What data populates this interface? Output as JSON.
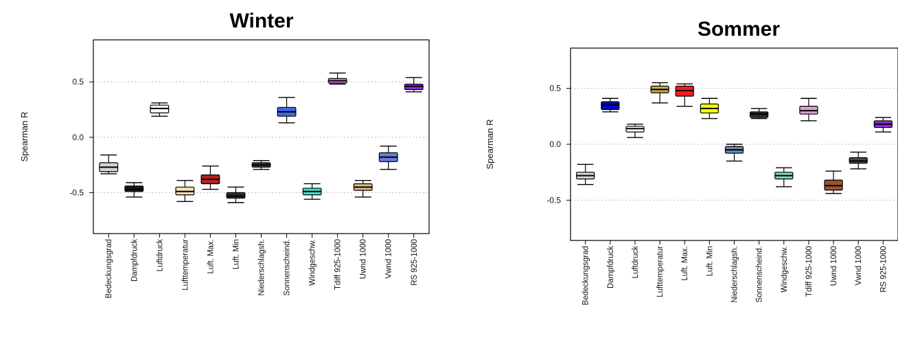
{
  "chart_data": [
    {
      "type": "box",
      "title": "Winter",
      "ylabel": "Spearman R",
      "yticks": [
        "0.5",
        "0.0",
        "-0.5"
      ],
      "ytick_values": [
        0.5,
        0.0,
        -0.5
      ],
      "ylim": [
        -0.87,
        0.88
      ],
      "grid": "horizontal dotted",
      "categories": [
        "Bedeckungsgrad",
        "Dampfdruck",
        "Luftdruck",
        "Lufttemperatur",
        "Luft. Max.",
        "Luft. Min",
        "Niederschlagsh.",
        "Sonnenscheind.",
        "Windgeschw.",
        "Tdiff 925-1000",
        "Uwnd 1000",
        "Vwnd 1000",
        "RS 925-1000"
      ],
      "boxes": [
        {
          "min": -0.33,
          "q1": -0.31,
          "median": -0.27,
          "q3": -0.23,
          "max": -0.16,
          "color": "#d3d3d3"
        },
        {
          "min": -0.54,
          "q1": -0.49,
          "median": -0.47,
          "q3": -0.44,
          "max": -0.41,
          "color": "#1a1a1a"
        },
        {
          "min": 0.19,
          "q1": 0.22,
          "median": 0.26,
          "q3": 0.29,
          "max": 0.31,
          "color": "#fffff0"
        },
        {
          "min": -0.58,
          "q1": -0.52,
          "median": -0.49,
          "q3": -0.45,
          "max": -0.39,
          "color": "#f5deb3"
        },
        {
          "min": -0.47,
          "q1": -0.42,
          "median": -0.38,
          "q3": -0.34,
          "max": -0.26,
          "color": "#b22222"
        },
        {
          "min": -0.59,
          "q1": -0.55,
          "median": -0.53,
          "q3": -0.5,
          "max": -0.45,
          "color": "#2f2f2f"
        },
        {
          "min": -0.29,
          "q1": -0.27,
          "median": -0.25,
          "q3": -0.23,
          "max": -0.21,
          "color": "#3a3a3a"
        },
        {
          "min": 0.13,
          "q1": 0.19,
          "median": 0.23,
          "q3": 0.27,
          "max": 0.36,
          "color": "#4169e1"
        },
        {
          "min": -0.56,
          "q1": -0.52,
          "median": -0.49,
          "q3": -0.46,
          "max": -0.42,
          "color": "#40e0d0"
        },
        {
          "min": 0.48,
          "q1": 0.49,
          "median": 0.51,
          "q3": 0.53,
          "max": 0.58,
          "color": "#ee82ee"
        },
        {
          "min": -0.54,
          "q1": -0.48,
          "median": -0.45,
          "q3": -0.42,
          "max": -0.39,
          "color": "#deb887"
        },
        {
          "min": -0.29,
          "q1": -0.22,
          "median": -0.18,
          "q3": -0.14,
          "max": -0.08,
          "color": "#6a7bdc"
        },
        {
          "min": 0.41,
          "q1": 0.43,
          "median": 0.46,
          "q3": 0.48,
          "max": 0.54,
          "color": "#8a2be2"
        }
      ]
    },
    {
      "type": "box",
      "title": "Sommer",
      "ylabel": "Spearman R",
      "yticks": [
        "0.5",
        "0.0",
        "-0.5"
      ],
      "ytick_values": [
        0.5,
        0.0,
        -0.5
      ],
      "ylim": [
        -0.86,
        0.86
      ],
      "grid": "horizontal dotted",
      "categories": [
        "Bedeckungsgrad",
        "Dampfdruck",
        "Luftdruck",
        "Lufttemperatur",
        "Luft. Max.",
        "Luft. Min",
        "Niederschlagsh.",
        "Sonnenscheind.",
        "Windgeschw.",
        "Tdiff 925-1000",
        "Uwnd 1000",
        "Vwnd 1000",
        "RS 925-1000"
      ],
      "boxes": [
        {
          "min": -0.36,
          "q1": -0.31,
          "median": -0.28,
          "q3": -0.25,
          "max": -0.18,
          "color": "#d3d3d3"
        },
        {
          "min": 0.29,
          "q1": 0.31,
          "median": 0.35,
          "q3": 0.38,
          "max": 0.41,
          "color": "#0000cd"
        },
        {
          "min": 0.06,
          "q1": 0.11,
          "median": 0.14,
          "q3": 0.16,
          "max": 0.18,
          "color": "#fffff0"
        },
        {
          "min": 0.37,
          "q1": 0.46,
          "median": 0.49,
          "q3": 0.52,
          "max": 0.55,
          "color": "#c8a54a"
        },
        {
          "min": 0.34,
          "q1": 0.43,
          "median": 0.48,
          "q3": 0.52,
          "max": 0.54,
          "color": "#ff1a1a"
        },
        {
          "min": 0.23,
          "q1": 0.28,
          "median": 0.32,
          "q3": 0.36,
          "max": 0.41,
          "color": "#ffff00"
        },
        {
          "min": -0.15,
          "q1": -0.08,
          "median": -0.05,
          "q3": -0.02,
          "max": 0.0,
          "color": "#6a8caf"
        },
        {
          "min": 0.23,
          "q1": 0.24,
          "median": 0.27,
          "q3": 0.29,
          "max": 0.32,
          "color": "#2b2b2b"
        },
        {
          "min": -0.38,
          "q1": -0.31,
          "median": -0.28,
          "q3": -0.25,
          "max": -0.21,
          "color": "#7fd1cf"
        },
        {
          "min": 0.21,
          "q1": 0.27,
          "median": 0.3,
          "q3": 0.34,
          "max": 0.41,
          "color": "#d8a0d8"
        },
        {
          "min": -0.44,
          "q1": -0.41,
          "median": -0.37,
          "q3": -0.32,
          "max": -0.24,
          "color": "#a0522d"
        },
        {
          "min": -0.22,
          "q1": -0.17,
          "median": -0.15,
          "q3": -0.12,
          "max": -0.07,
          "color": "#4a4a4a"
        },
        {
          "min": 0.11,
          "q1": 0.15,
          "median": 0.18,
          "q3": 0.21,
          "max": 0.24,
          "color": "#8a2be2"
        }
      ]
    }
  ]
}
